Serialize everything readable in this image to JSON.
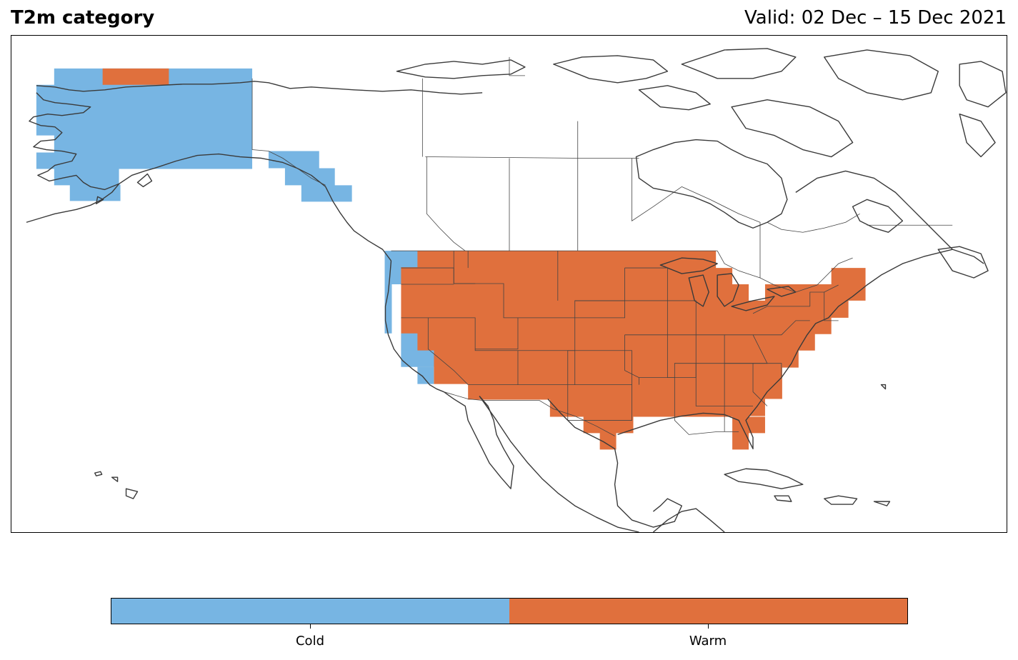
{
  "header": {
    "title": "T2m category",
    "valid": "Valid: 02 Dec – 15 Dec 2021"
  },
  "colors": {
    "cold": "#77b5e3",
    "warm": "#e0703d",
    "coast": "#3a3a3a",
    "border": "#444444"
  },
  "legend": {
    "categories": [
      {
        "label": "Cold",
        "color": "#77b5e3"
      },
      {
        "label": "Warm",
        "color": "#e0703d"
      }
    ]
  },
  "map": {
    "regions": [
      {
        "name": "alaska",
        "category": "Cold"
      },
      {
        "name": "north-slope-alaska",
        "category": "Warm"
      },
      {
        "name": "southeast-alaska-panhandle",
        "category": "Cold"
      },
      {
        "name": "pacific-northwest-coast",
        "category": "Cold"
      },
      {
        "name": "california-coast",
        "category": "Cold"
      },
      {
        "name": "contiguous-united-states",
        "category": "Warm"
      },
      {
        "name": "florida",
        "category": "Warm"
      },
      {
        "name": "south-texas",
        "category": "Warm"
      }
    ]
  }
}
